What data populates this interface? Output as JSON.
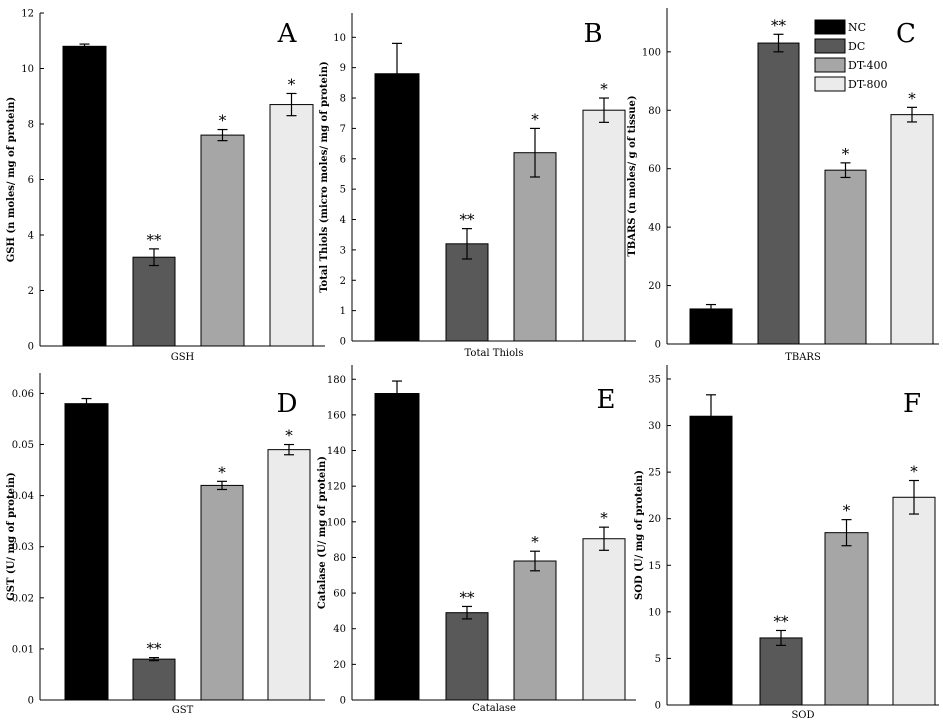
{
  "colors": {
    "NC": "#000000",
    "DC": "#595959",
    "DT-400": "#a6a6a6",
    "DT-800": "#ebebeb"
  },
  "legend": {
    "placement": "top-right",
    "entries": [
      "NC",
      "DC",
      "DT-400",
      "DT-800"
    ]
  },
  "chart_data": [
    {
      "type": "bar",
      "panel": "A",
      "xlabel": "GSH",
      "ylabel": "GSH (n moles/ mg of protein)",
      "categories": [
        "NC",
        "DC",
        "DT-400",
        "DT-800"
      ],
      "values": [
        10.8,
        3.2,
        7.6,
        8.7
      ],
      "errors": [
        0.08,
        0.3,
        0.2,
        0.4
      ],
      "significance": [
        "",
        "**",
        "*",
        "*"
      ],
      "ylim": [
        0,
        12
      ],
      "yticks": [
        0,
        2,
        4,
        6,
        8,
        10,
        12
      ]
    },
    {
      "type": "bar",
      "panel": "B",
      "xlabel": "Total Thiols",
      "ylabel": "Total Thiols (micro moles/ mg of protein)",
      "categories": [
        "NC",
        "DC",
        "DT-400",
        "DT-800"
      ],
      "values": [
        8.8,
        3.2,
        6.2,
        7.6
      ],
      "errors": [
        1.0,
        0.5,
        0.8,
        0.4
      ],
      "significance": [
        "",
        "**",
        "*",
        "*"
      ],
      "ylim": [
        0,
        10.8
      ],
      "yticks": [
        0,
        1,
        2,
        3,
        4,
        5,
        6,
        7,
        8,
        9,
        10
      ]
    },
    {
      "type": "bar",
      "panel": "C",
      "xlabel": "TBARS",
      "ylabel": "TBARS (n moles/ g of tissue)",
      "categories": [
        "NC",
        "DC",
        "DT-400",
        "DT-800"
      ],
      "values": [
        12,
        103,
        59.5,
        78.5
      ],
      "errors": [
        1.5,
        3,
        2.5,
        2.5
      ],
      "significance": [
        "",
        "**",
        "*",
        "*"
      ],
      "ylim": [
        0,
        115
      ],
      "yticks": [
        0,
        20,
        40,
        60,
        80,
        100
      ]
    },
    {
      "type": "bar",
      "panel": "D",
      "xlabel": "GST",
      "ylabel": "GST (U/ mg of protein)",
      "categories": [
        "NC",
        "DC",
        "DT-400",
        "DT-800"
      ],
      "values": [
        0.058,
        0.008,
        0.042,
        0.049
      ],
      "errors": [
        0.001,
        0.0003,
        0.0008,
        0.001
      ],
      "significance": [
        "",
        "**",
        "*",
        "*"
      ],
      "ylim": [
        0,
        0.064
      ],
      "yticks": [
        0,
        0.01,
        0.02,
        0.03,
        0.04,
        0.05,
        0.06
      ],
      "yticklabels": [
        "0",
        "0.01",
        "0.02",
        "0.03",
        "0.04",
        "0.05",
        "0.06"
      ]
    },
    {
      "type": "bar",
      "panel": "E",
      "xlabel": "Catalase",
      "ylabel": "Catalase (U/ mg of protein)",
      "categories": [
        "NC",
        "DC",
        "DT-400",
        "DT-800"
      ],
      "values": [
        172,
        49,
        78,
        90.5
      ],
      "errors": [
        7,
        3.5,
        5.5,
        6.5
      ],
      "significance": [
        "",
        "**",
        "*",
        "*"
      ],
      "ylim": [
        0,
        188
      ],
      "yticks": [
        0,
        20,
        40,
        60,
        80,
        100,
        120,
        140,
        160,
        180
      ]
    },
    {
      "type": "bar",
      "panel": "F",
      "xlabel": "SOD",
      "ylabel": "SOD (U/ mg of protein)",
      "categories": [
        "NC",
        "DC",
        "DT-400",
        "DT-800"
      ],
      "values": [
        31,
        7.2,
        18.5,
        22.3
      ],
      "errors": [
        2.3,
        0.8,
        1.4,
        1.8
      ],
      "significance": [
        "",
        "**",
        "*",
        "*"
      ],
      "ylim": [
        0,
        36.5
      ],
      "yticks": [
        0,
        5,
        10,
        15,
        20,
        25,
        30,
        35
      ]
    }
  ]
}
